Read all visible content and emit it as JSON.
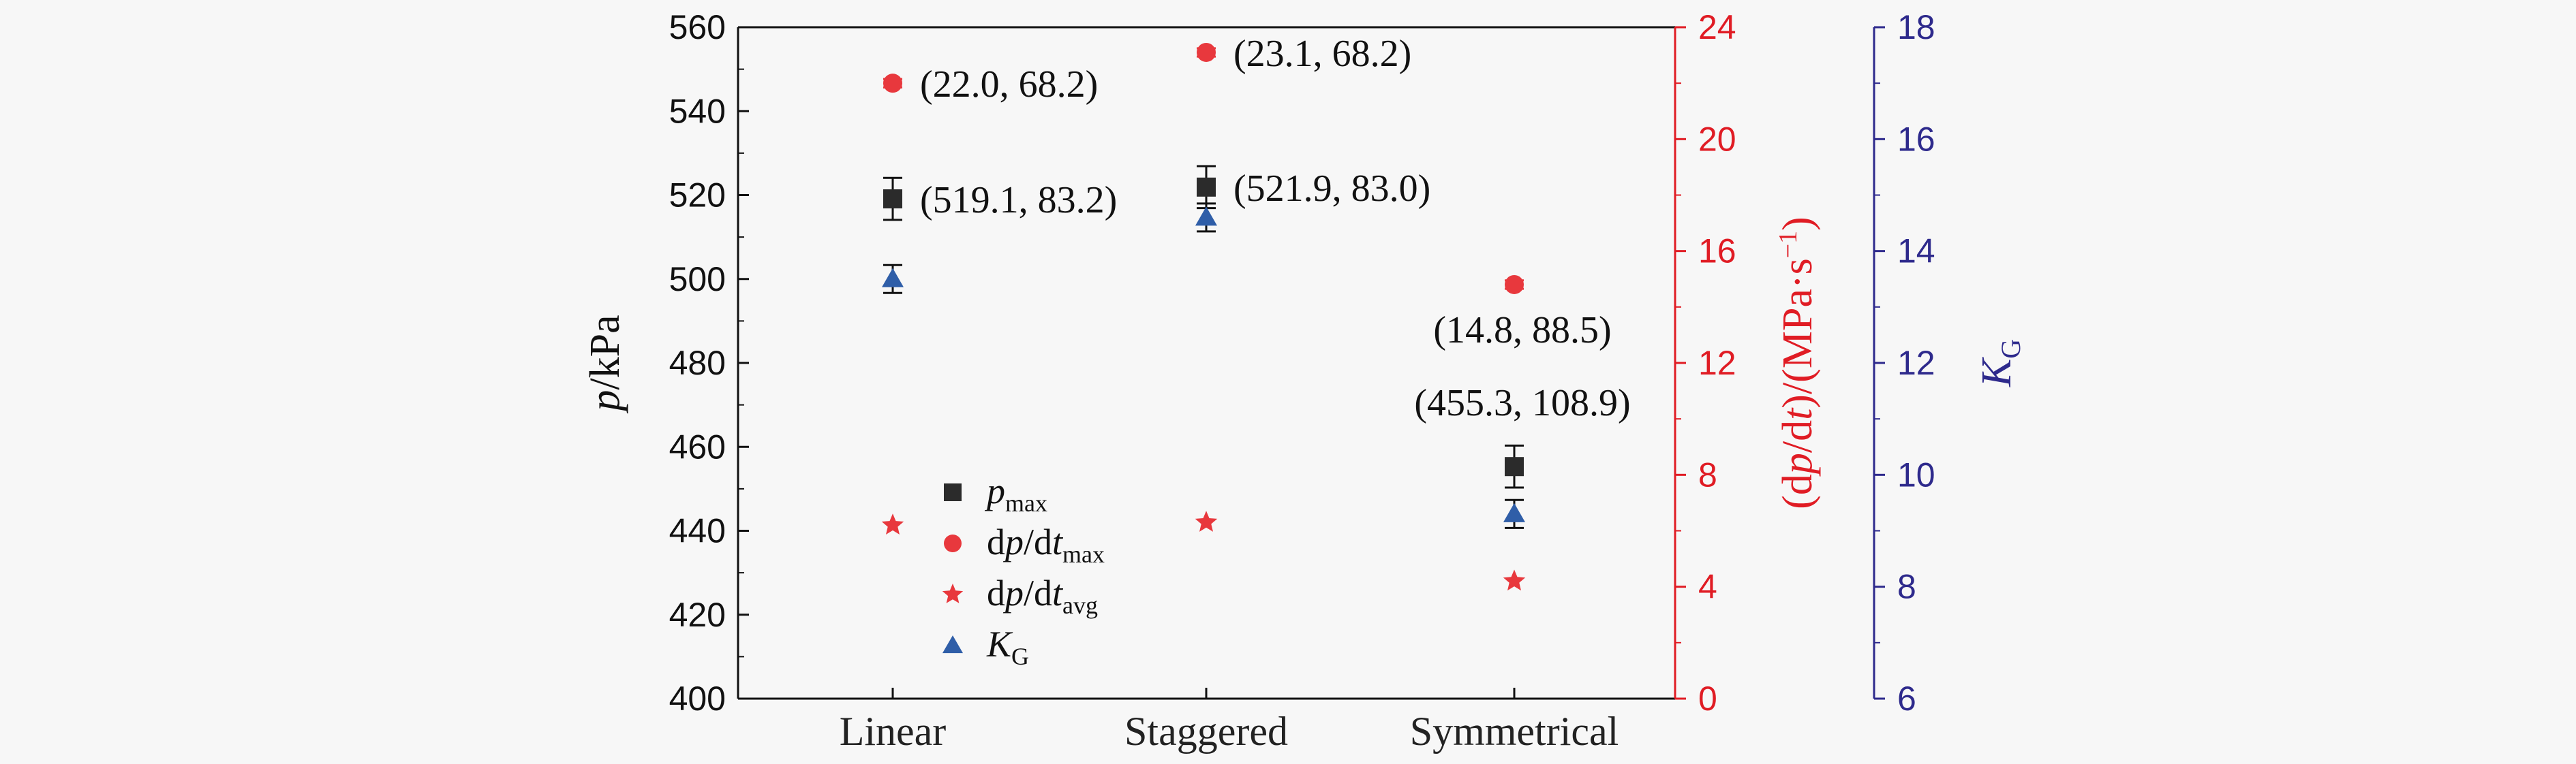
{
  "chart_data": {
    "type": "scatter",
    "categories": [
      "Linear",
      "Staggered",
      "Symmetrical"
    ],
    "axes": {
      "left": {
        "label_main": "p",
        "label_rest": "/kPa",
        "ylim": [
          400,
          560
        ],
        "ticks": [
          400,
          420,
          440,
          460,
          480,
          500,
          520,
          540,
          560
        ],
        "color": "#111111"
      },
      "right_red": {
        "label_pre": "(d",
        "label_p": "p",
        "label_mid": "/d",
        "label_t": "t",
        "label_post": ")/(MPa·s",
        "label_sup": "−1",
        "label_end": ")",
        "ylim": [
          0,
          24
        ],
        "ticks": [
          0,
          4,
          8,
          12,
          16,
          20,
          24
        ],
        "color": "#e01c24"
      },
      "right_blue": {
        "label_main": "K",
        "label_sub": "G",
        "ylim": [
          6,
          18
        ],
        "ticks": [
          6,
          8,
          10,
          12,
          14,
          16,
          18
        ],
        "color": "#2e2a8c"
      }
    },
    "series": [
      {
        "name": "p",
        "name_sub": "max",
        "axis": "left",
        "marker": "square",
        "color": "#2b2b2b",
        "values": [
          519.1,
          521.9,
          455.3
        ],
        "errors": [
          5,
          5,
          5
        ]
      },
      {
        "name": "dp/dt",
        "name_sub": "max",
        "axis": "right_red",
        "marker": "circle",
        "color": "#e8383d",
        "values": [
          22.0,
          23.1,
          14.8
        ],
        "errors": [
          0.15,
          0.15,
          0.15
        ]
      },
      {
        "name": "dp/dt",
        "name_sub": "avg",
        "axis": "right_red",
        "marker": "star",
        "color": "#e8383d",
        "values": [
          6.2,
          6.3,
          4.2
        ],
        "errors": [
          0,
          0,
          0
        ]
      },
      {
        "name": "K",
        "name_sub": "G",
        "axis": "right_blue",
        "marker": "triangle",
        "color": "#2f5ea8",
        "values": [
          13.5,
          14.6,
          9.3
        ],
        "errors": [
          0.25,
          0.25,
          0.25
        ]
      }
    ],
    "annotations": [
      {
        "text": "(22.0, 68.2)",
        "category": "Linear",
        "series": "dp/dt max"
      },
      {
        "text": "(519.1, 83.2)",
        "category": "Linear",
        "series": "p max"
      },
      {
        "text": "(23.1, 68.2)",
        "category": "Staggered",
        "series": "dp/dt max"
      },
      {
        "text": "(521.9, 83.0)",
        "category": "Staggered",
        "series": "p max"
      },
      {
        "text": "(14.8, 88.5)",
        "category": "Symmetrical",
        "series": "dp/dt max"
      },
      {
        "text": "(455.3, 108.9)",
        "category": "Symmetrical",
        "series": "p max"
      }
    ],
    "legend_position": "lower-left inside plot",
    "grid": false
  }
}
